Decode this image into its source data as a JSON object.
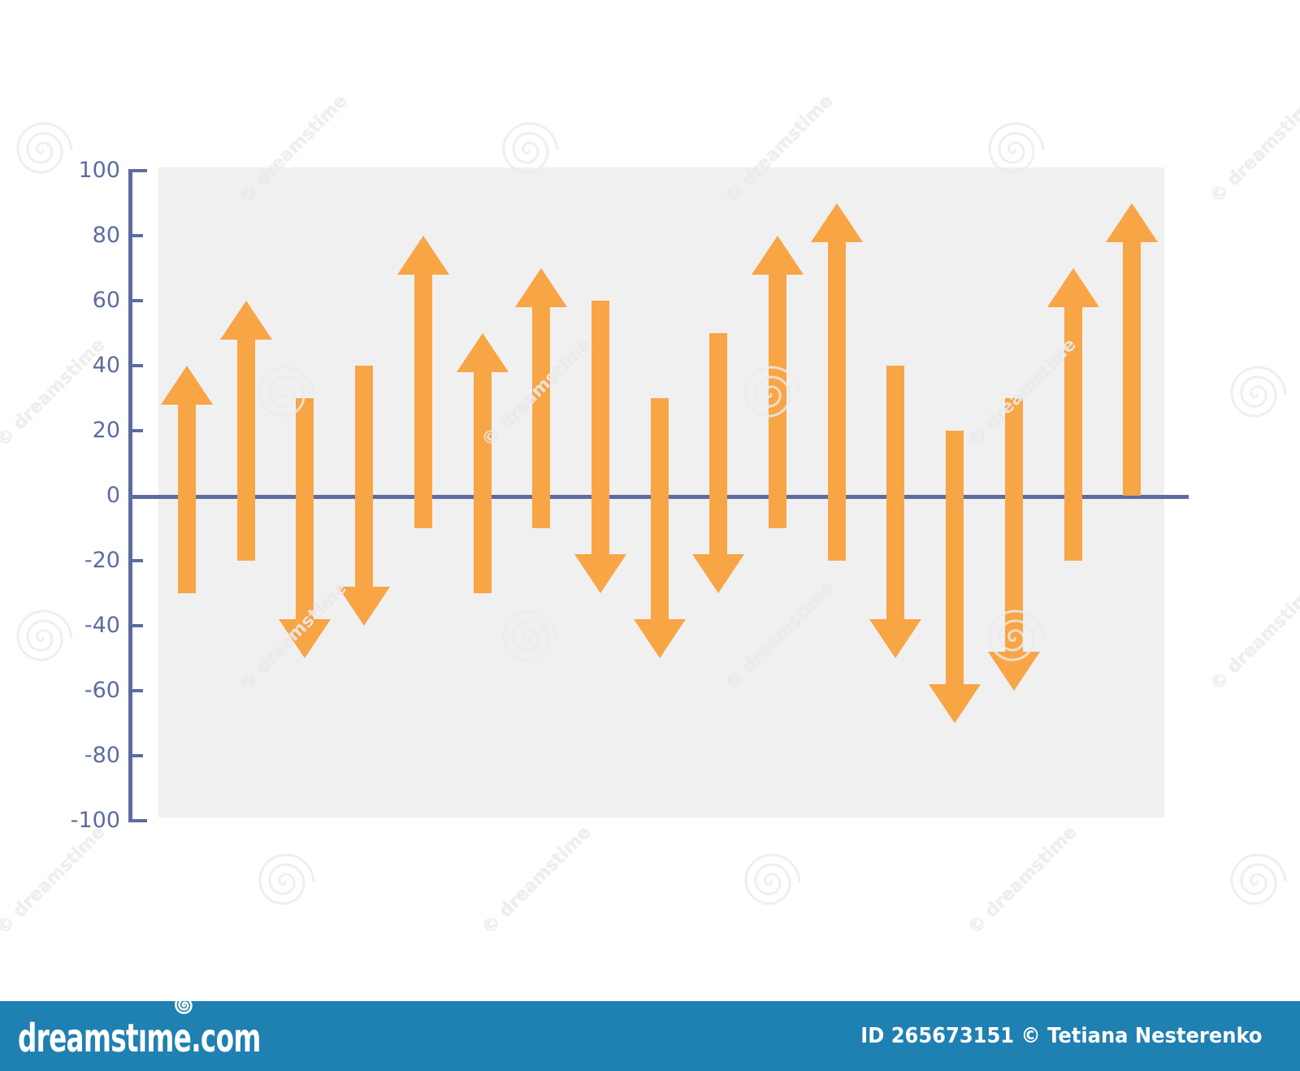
{
  "page": {
    "background": "#ffffff"
  },
  "chart_data": {
    "type": "bar",
    "variant": "up-down-arrow-chart",
    "title": "",
    "xlabel": "",
    "ylabel": "",
    "ylim": [
      -100,
      100
    ],
    "ytick_step": 20,
    "yticks": [
      100,
      80,
      60,
      40,
      20,
      0,
      -20,
      -40,
      -60,
      -80,
      -100
    ],
    "baseline_value": 0,
    "grid": false,
    "legend": false,
    "x_categories": [],
    "arrows": [
      {
        "from": -30,
        "to": 40,
        "direction": "up"
      },
      {
        "from": -20,
        "to": 60,
        "direction": "up"
      },
      {
        "from": 30,
        "to": -50,
        "direction": "down"
      },
      {
        "from": 40,
        "to": -40,
        "direction": "down"
      },
      {
        "from": -10,
        "to": 80,
        "direction": "up"
      },
      {
        "from": -30,
        "to": 50,
        "direction": "up"
      },
      {
        "from": -10,
        "to": 70,
        "direction": "up"
      },
      {
        "from": 60,
        "to": -30,
        "direction": "down"
      },
      {
        "from": 30,
        "to": -50,
        "direction": "down"
      },
      {
        "from": 50,
        "to": -30,
        "direction": "down"
      },
      {
        "from": -10,
        "to": 80,
        "direction": "up"
      },
      {
        "from": -20,
        "to": 90,
        "direction": "up"
      },
      {
        "from": 40,
        "to": -50,
        "direction": "down"
      },
      {
        "from": 20,
        "to": -70,
        "direction": "down"
      },
      {
        "from": 30,
        "to": -60,
        "direction": "down"
      },
      {
        "from": -20,
        "to": 70,
        "direction": "up"
      },
      {
        "from": 0,
        "to": 90,
        "direction": "up"
      }
    ],
    "colors": {
      "arrow": "#F8A545",
      "axis": "#5C6CA0",
      "baseline": "#5C6CA0",
      "plot_bg": "#F0F0F1"
    }
  },
  "watermark": {
    "tile_text": "© dreamstime",
    "spiral_icon": "dreamstime-spiral-icon",
    "footer": {
      "bar_color": "#1F80B2",
      "logo_text": "dreamstime.com",
      "credit_text": "ID 265673151 © Tetiana Nesterenko"
    }
  }
}
